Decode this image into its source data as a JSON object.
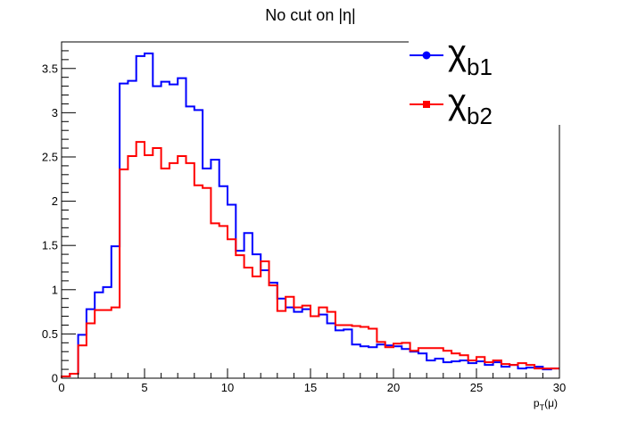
{
  "chart_data": {
    "type": "line",
    "title": "No cut on |η|",
    "xlabel": "p",
    "xlabel_sub": "T",
    "xlabel_suffix": "(μ)",
    "ylabel": "",
    "xlim": [
      0,
      30
    ],
    "ylim": [
      0,
      3.8
    ],
    "x_ticks": [
      "0",
      "5",
      "10",
      "15",
      "20",
      "25",
      "30"
    ],
    "y_ticks": [
      "0",
      "0.5",
      "1",
      "1.5",
      "2",
      "2.5",
      "3",
      "3.5"
    ],
    "grid": false,
    "legend_placement": "top-right",
    "bin_width": 0.5,
    "series": [
      {
        "name": "χ",
        "name_sub": "b1",
        "color": "#0000ff",
        "marker": "circle",
        "values": [
          0.02,
          0.05,
          0.49,
          0.78,
          0.97,
          1.03,
          1.49,
          3.33,
          3.36,
          3.64,
          3.67,
          3.3,
          3.35,
          3.32,
          3.39,
          3.07,
          3.03,
          2.37,
          2.47,
          2.17,
          1.96,
          1.44,
          1.64,
          1.4,
          1.22,
          1.08,
          0.9,
          0.8,
          0.75,
          0.78,
          0.7,
          0.72,
          0.62,
          0.54,
          0.55,
          0.38,
          0.36,
          0.35,
          0.38,
          0.37,
          0.36,
          0.33,
          0.3,
          0.28,
          0.2,
          0.22,
          0.18,
          0.19,
          0.2,
          0.17,
          0.19,
          0.15,
          0.18,
          0.13,
          0.15,
          0.11,
          0.12,
          0.13,
          0.1,
          0.11
        ]
      },
      {
        "name": "χ",
        "name_sub": "b2",
        "color": "#ff0000",
        "marker": "square",
        "values": [
          0.02,
          0.05,
          0.37,
          0.62,
          0.77,
          0.77,
          0.8,
          2.36,
          2.51,
          2.67,
          2.52,
          2.6,
          2.37,
          2.43,
          2.51,
          2.43,
          2.18,
          2.15,
          1.75,
          1.72,
          1.57,
          1.39,
          1.25,
          1.15,
          1.32,
          1.05,
          0.76,
          0.92,
          0.8,
          0.82,
          0.7,
          0.8,
          0.75,
          0.6,
          0.6,
          0.59,
          0.58,
          0.56,
          0.41,
          0.35,
          0.39,
          0.4,
          0.31,
          0.34,
          0.34,
          0.34,
          0.31,
          0.28,
          0.26,
          0.2,
          0.24,
          0.18,
          0.2,
          0.16,
          0.15,
          0.17,
          0.15,
          0.11,
          0.11,
          0.11
        ]
      }
    ]
  }
}
